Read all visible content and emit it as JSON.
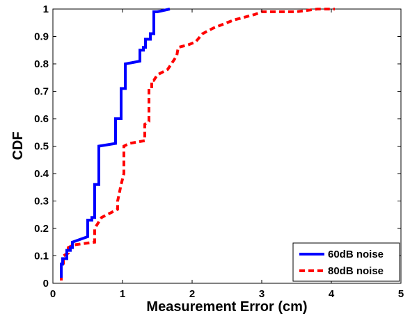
{
  "chart_data": {
    "type": "line",
    "xlabel": "Measurement Error (cm)",
    "ylabel": "CDF",
    "xlim": [
      0,
      5
    ],
    "ylim": [
      0,
      1
    ],
    "x_ticks": [
      "0",
      "1",
      "2",
      "3",
      "4",
      "5"
    ],
    "y_ticks": [
      "0",
      "0.1",
      "0.2",
      "0.3",
      "0.4",
      "0.5",
      "0.6",
      "0.7",
      "0.8",
      "0.9",
      "1"
    ],
    "grid": false,
    "legend_position": "bottom-right",
    "series": [
      {
        "name": "60dB noise",
        "color": "#0000ff",
        "dash": "solid",
        "points": [
          [
            0.12,
            0.02
          ],
          [
            0.12,
            0.07
          ],
          [
            0.14,
            0.07
          ],
          [
            0.14,
            0.09
          ],
          [
            0.2,
            0.09
          ],
          [
            0.2,
            0.12
          ],
          [
            0.25,
            0.12
          ],
          [
            0.25,
            0.13
          ],
          [
            0.28,
            0.13
          ],
          [
            0.28,
            0.15
          ],
          [
            0.5,
            0.17
          ],
          [
            0.5,
            0.23
          ],
          [
            0.56,
            0.23
          ],
          [
            0.56,
            0.24
          ],
          [
            0.6,
            0.24
          ],
          [
            0.6,
            0.36
          ],
          [
            0.66,
            0.36
          ],
          [
            0.66,
            0.38
          ],
          [
            0.66,
            0.5
          ],
          [
            0.9,
            0.51
          ],
          [
            0.9,
            0.6
          ],
          [
            0.98,
            0.6
          ],
          [
            0.98,
            0.71
          ],
          [
            1.04,
            0.71
          ],
          [
            1.04,
            0.8
          ],
          [
            1.25,
            0.81
          ],
          [
            1.25,
            0.85
          ],
          [
            1.3,
            0.85
          ],
          [
            1.3,
            0.86
          ],
          [
            1.33,
            0.86
          ],
          [
            1.33,
            0.89
          ],
          [
            1.4,
            0.89
          ],
          [
            1.4,
            0.91
          ],
          [
            1.45,
            0.91
          ],
          [
            1.45,
            0.99
          ],
          [
            1.5,
            0.99
          ],
          [
            1.68,
            1.0
          ]
        ]
      },
      {
        "name": "80dB noise",
        "color": "#ff0000",
        "dash": "dashed",
        "points": [
          [
            0.12,
            0.01
          ],
          [
            0.12,
            0.06
          ],
          [
            0.15,
            0.06
          ],
          [
            0.15,
            0.1
          ],
          [
            0.22,
            0.11
          ],
          [
            0.22,
            0.13
          ],
          [
            0.3,
            0.14
          ],
          [
            0.6,
            0.15
          ],
          [
            0.6,
            0.2
          ],
          [
            0.65,
            0.22
          ],
          [
            0.7,
            0.24
          ],
          [
            0.93,
            0.27
          ],
          [
            0.93,
            0.3
          ],
          [
            0.98,
            0.36
          ],
          [
            1.02,
            0.4
          ],
          [
            1.02,
            0.5
          ],
          [
            1.1,
            0.51
          ],
          [
            1.32,
            0.52
          ],
          [
            1.32,
            0.58
          ],
          [
            1.38,
            0.59
          ],
          [
            1.38,
            0.71
          ],
          [
            1.42,
            0.71
          ],
          [
            1.42,
            0.74
          ],
          [
            1.45,
            0.74
          ],
          [
            1.5,
            0.76
          ],
          [
            1.65,
            0.78
          ],
          [
            1.78,
            0.83
          ],
          [
            1.8,
            0.86
          ],
          [
            1.95,
            0.87
          ],
          [
            2.05,
            0.88
          ],
          [
            2.15,
            0.91
          ],
          [
            2.3,
            0.93
          ],
          [
            2.6,
            0.96
          ],
          [
            2.9,
            0.98
          ],
          [
            3.0,
            0.99
          ],
          [
            3.5,
            0.99
          ],
          [
            3.8,
            1.0
          ],
          [
            4.05,
            1.0
          ]
        ]
      }
    ]
  }
}
